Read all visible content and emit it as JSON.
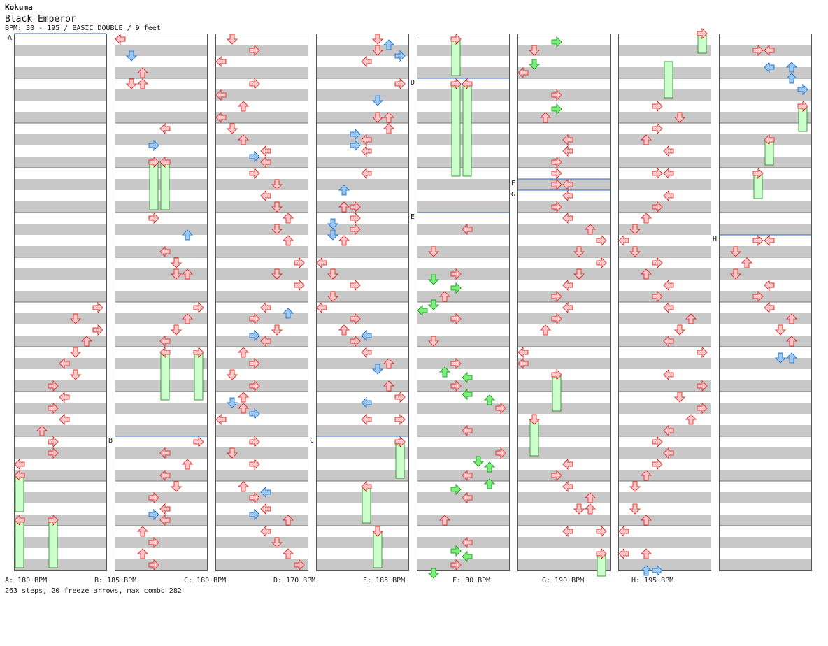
{
  "header": {
    "artist": "Kokuma",
    "title": "Black Emperor",
    "bpm_info": "BPM: 30 - 195 / BASIC DOUBLE / 9 feet"
  },
  "colors": {
    "stripe": "#c8c8c8",
    "border": "#555555",
    "red_fill": "#ffc8c8",
    "red_stroke": "#e03a3a",
    "blue_fill": "#9cc8f2",
    "blue_stroke": "#2f7fcf",
    "green_fill": "#7cf07c",
    "green_stroke": "#28a628",
    "freeze_fill": "#ccffcc",
    "freeze_stroke": "#3c9c3c",
    "bpm_line": "#2b64c8"
  },
  "segments": [
    {
      "label": "A",
      "bpm_text": "A: 180 BPM"
    },
    {
      "label": "B",
      "bpm_text": "B: 185 BPM"
    },
    {
      "label": "C",
      "bpm_text": "C: 180 BPM"
    },
    {
      "label": "D",
      "bpm_text": "D: 170 BPM"
    },
    {
      "label": "E",
      "bpm_text": "E: 185 BPM"
    },
    {
      "label": "F",
      "bpm_text": "F: 30 BPM"
    },
    {
      "label": "G",
      "bpm_text": "G: 190 BPM"
    },
    {
      "label": "H",
      "bpm_text": "H: 195 BPM"
    }
  ],
  "stats": "263 steps, 20 freeze arrows, max combo 282"
}
